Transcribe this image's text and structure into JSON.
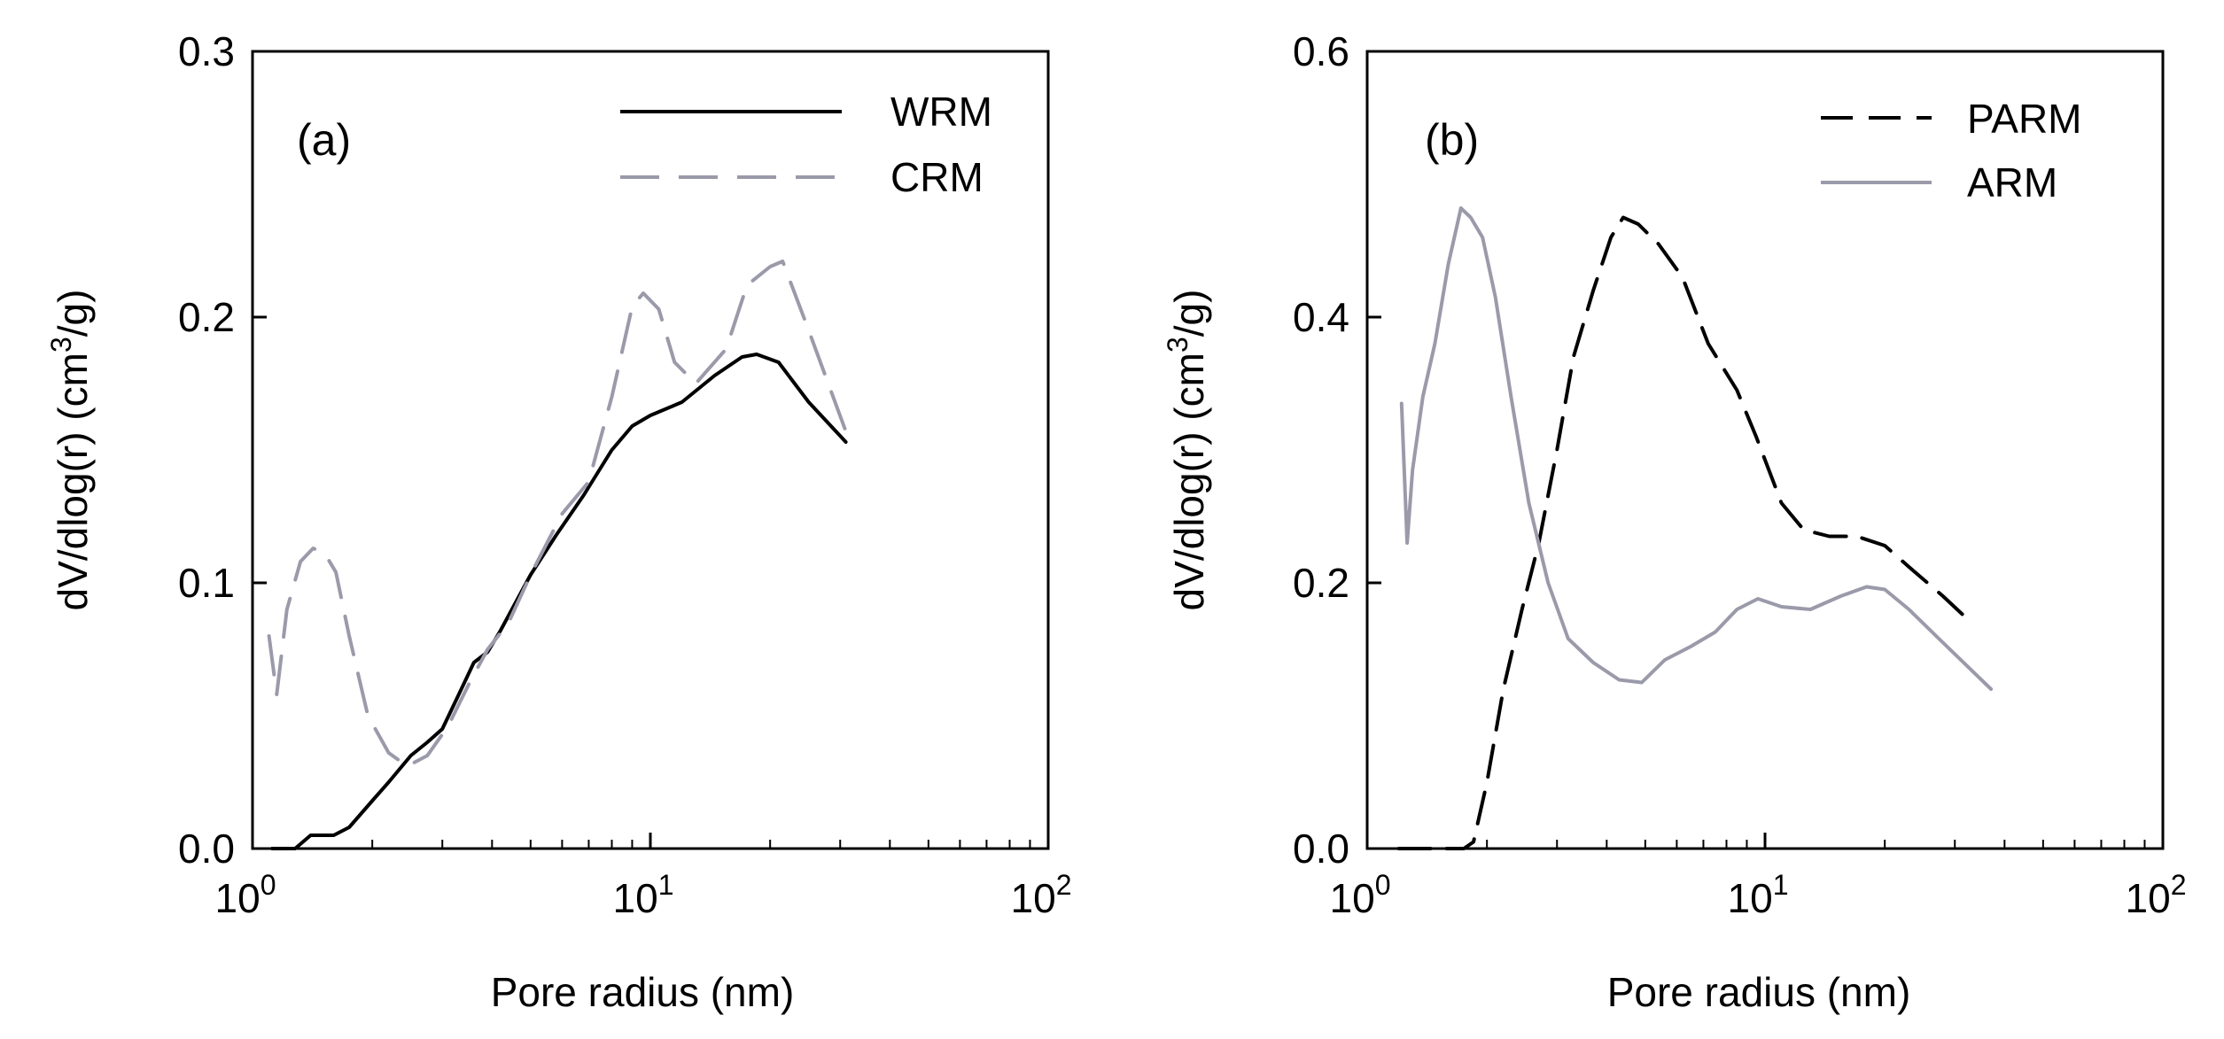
{
  "chart_data": [
    {
      "type": "line",
      "panel_label": "(a)",
      "xlabel": "Pore radius (nm)",
      "ylabel_main": "dV/dlog(r)  (cm",
      "ylabel_sup": "3",
      "ylabel_tail": "/g)",
      "xscale": "log",
      "xlim": [
        1,
        100
      ],
      "ylim": [
        0,
        0.3
      ],
      "yticks": [
        0.0,
        0.1,
        0.2,
        0.3
      ],
      "ytick_labels": [
        "0.0",
        "0.1",
        "0.2",
        "0.3"
      ],
      "xticks_major": [
        {
          "value": 1,
          "base": "10",
          "exp": "0"
        },
        {
          "value": 10,
          "base": "10",
          "exp": "1"
        },
        {
          "value": 100,
          "base": "10",
          "exp": "2"
        }
      ],
      "legend_position": "top-right",
      "series": [
        {
          "name": "WRM",
          "style": "solid",
          "color": "#000000",
          "x": [
            1.12,
            1.28,
            1.4,
            1.5,
            1.6,
            1.75,
            2.0,
            2.2,
            2.5,
            2.75,
            3.0,
            3.3,
            3.6,
            3.9,
            4.2,
            4.6,
            5.0,
            5.8,
            6.8,
            8.0,
            9.0,
            10.0,
            12.0,
            14.5,
            17.0,
            18.5,
            21.0,
            25.0,
            31.0
          ],
          "y": [
            0.0,
            0.0,
            0.005,
            0.005,
            0.005,
            0.008,
            0.018,
            0.025,
            0.035,
            0.04,
            0.045,
            0.058,
            0.07,
            0.074,
            0.082,
            0.093,
            0.103,
            0.118,
            0.133,
            0.15,
            0.159,
            0.163,
            0.168,
            0.178,
            0.185,
            0.186,
            0.183,
            0.168,
            0.153
          ]
        },
        {
          "name": "CRM",
          "style": "dashed",
          "color": "#9a9aaa",
          "x": [
            1.1,
            1.15,
            1.22,
            1.32,
            1.42,
            1.52,
            1.62,
            1.75,
            1.95,
            2.2,
            2.45,
            2.75,
            3.1,
            3.5,
            3.9,
            4.4,
            5.0,
            6.0,
            7.0,
            8.0,
            9.0,
            9.6,
            10.5,
            11.5,
            13.0,
            15.5,
            17.5,
            20.0,
            21.5,
            25.0,
            31.0
          ],
          "y": [
            0.08,
            0.058,
            0.09,
            0.108,
            0.113,
            0.111,
            0.104,
            0.08,
            0.05,
            0.036,
            0.031,
            0.035,
            0.046,
            0.062,
            0.075,
            0.085,
            0.103,
            0.126,
            0.138,
            0.17,
            0.204,
            0.209,
            0.203,
            0.183,
            0.175,
            0.188,
            0.212,
            0.219,
            0.221,
            0.195,
            0.157
          ]
        }
      ]
    },
    {
      "type": "line",
      "panel_label": "(b)",
      "xlabel": "Pore radius (nm)",
      "ylabel_main": "dV/dlog(r)  (cm",
      "ylabel_sup": "3",
      "ylabel_tail": "/g)",
      "xscale": "log",
      "xlim": [
        1,
        100
      ],
      "ylim": [
        0,
        0.6
      ],
      "yticks": [
        0.0,
        0.2,
        0.4,
        0.6
      ],
      "ytick_labels": [
        "0.0",
        "0.2",
        "0.4",
        "0.6"
      ],
      "xticks_major": [
        {
          "value": 1,
          "base": "10",
          "exp": "0"
        },
        {
          "value": 10,
          "base": "10",
          "exp": "1"
        },
        {
          "value": 100,
          "base": "10",
          "exp": "2"
        }
      ],
      "legend_position": "top-right",
      "series": [
        {
          "name": "PARM",
          "style": "dashed",
          "color": "#000000",
          "x": [
            1.2,
            1.5,
            1.75,
            1.85,
            2.0,
            2.2,
            2.45,
            2.7,
            3.0,
            3.3,
            3.7,
            4.1,
            4.4,
            4.8,
            5.4,
            6.2,
            7.2,
            8.5,
            9.5,
            11.0,
            12.5,
            14.5,
            17.0,
            20.0,
            23.0,
            28.0,
            33.0
          ],
          "y": [
            0.0,
            0.0,
            0.0,
            0.005,
            0.05,
            0.12,
            0.18,
            0.23,
            0.3,
            0.37,
            0.42,
            0.46,
            0.475,
            0.47,
            0.455,
            0.43,
            0.38,
            0.345,
            0.31,
            0.26,
            0.24,
            0.235,
            0.235,
            0.228,
            0.212,
            0.19,
            0.17
          ]
        },
        {
          "name": "ARM",
          "style": "solid",
          "color": "#9a9aaa",
          "x": [
            1.22,
            1.26,
            1.3,
            1.38,
            1.48,
            1.6,
            1.72,
            1.82,
            1.95,
            2.1,
            2.3,
            2.55,
            2.85,
            3.2,
            3.7,
            4.3,
            4.9,
            5.6,
            6.5,
            7.5,
            8.5,
            9.6,
            11.0,
            13.0,
            15.5,
            18.0,
            20.0,
            23.0,
            28.0,
            37.0
          ],
          "y": [
            0.335,
            0.23,
            0.285,
            0.34,
            0.38,
            0.44,
            0.482,
            0.475,
            0.46,
            0.415,
            0.34,
            0.26,
            0.2,
            0.158,
            0.14,
            0.127,
            0.125,
            0.142,
            0.152,
            0.163,
            0.18,
            0.188,
            0.182,
            0.18,
            0.19,
            0.197,
            0.195,
            0.18,
            0.155,
            0.12
          ]
        }
      ]
    }
  ]
}
